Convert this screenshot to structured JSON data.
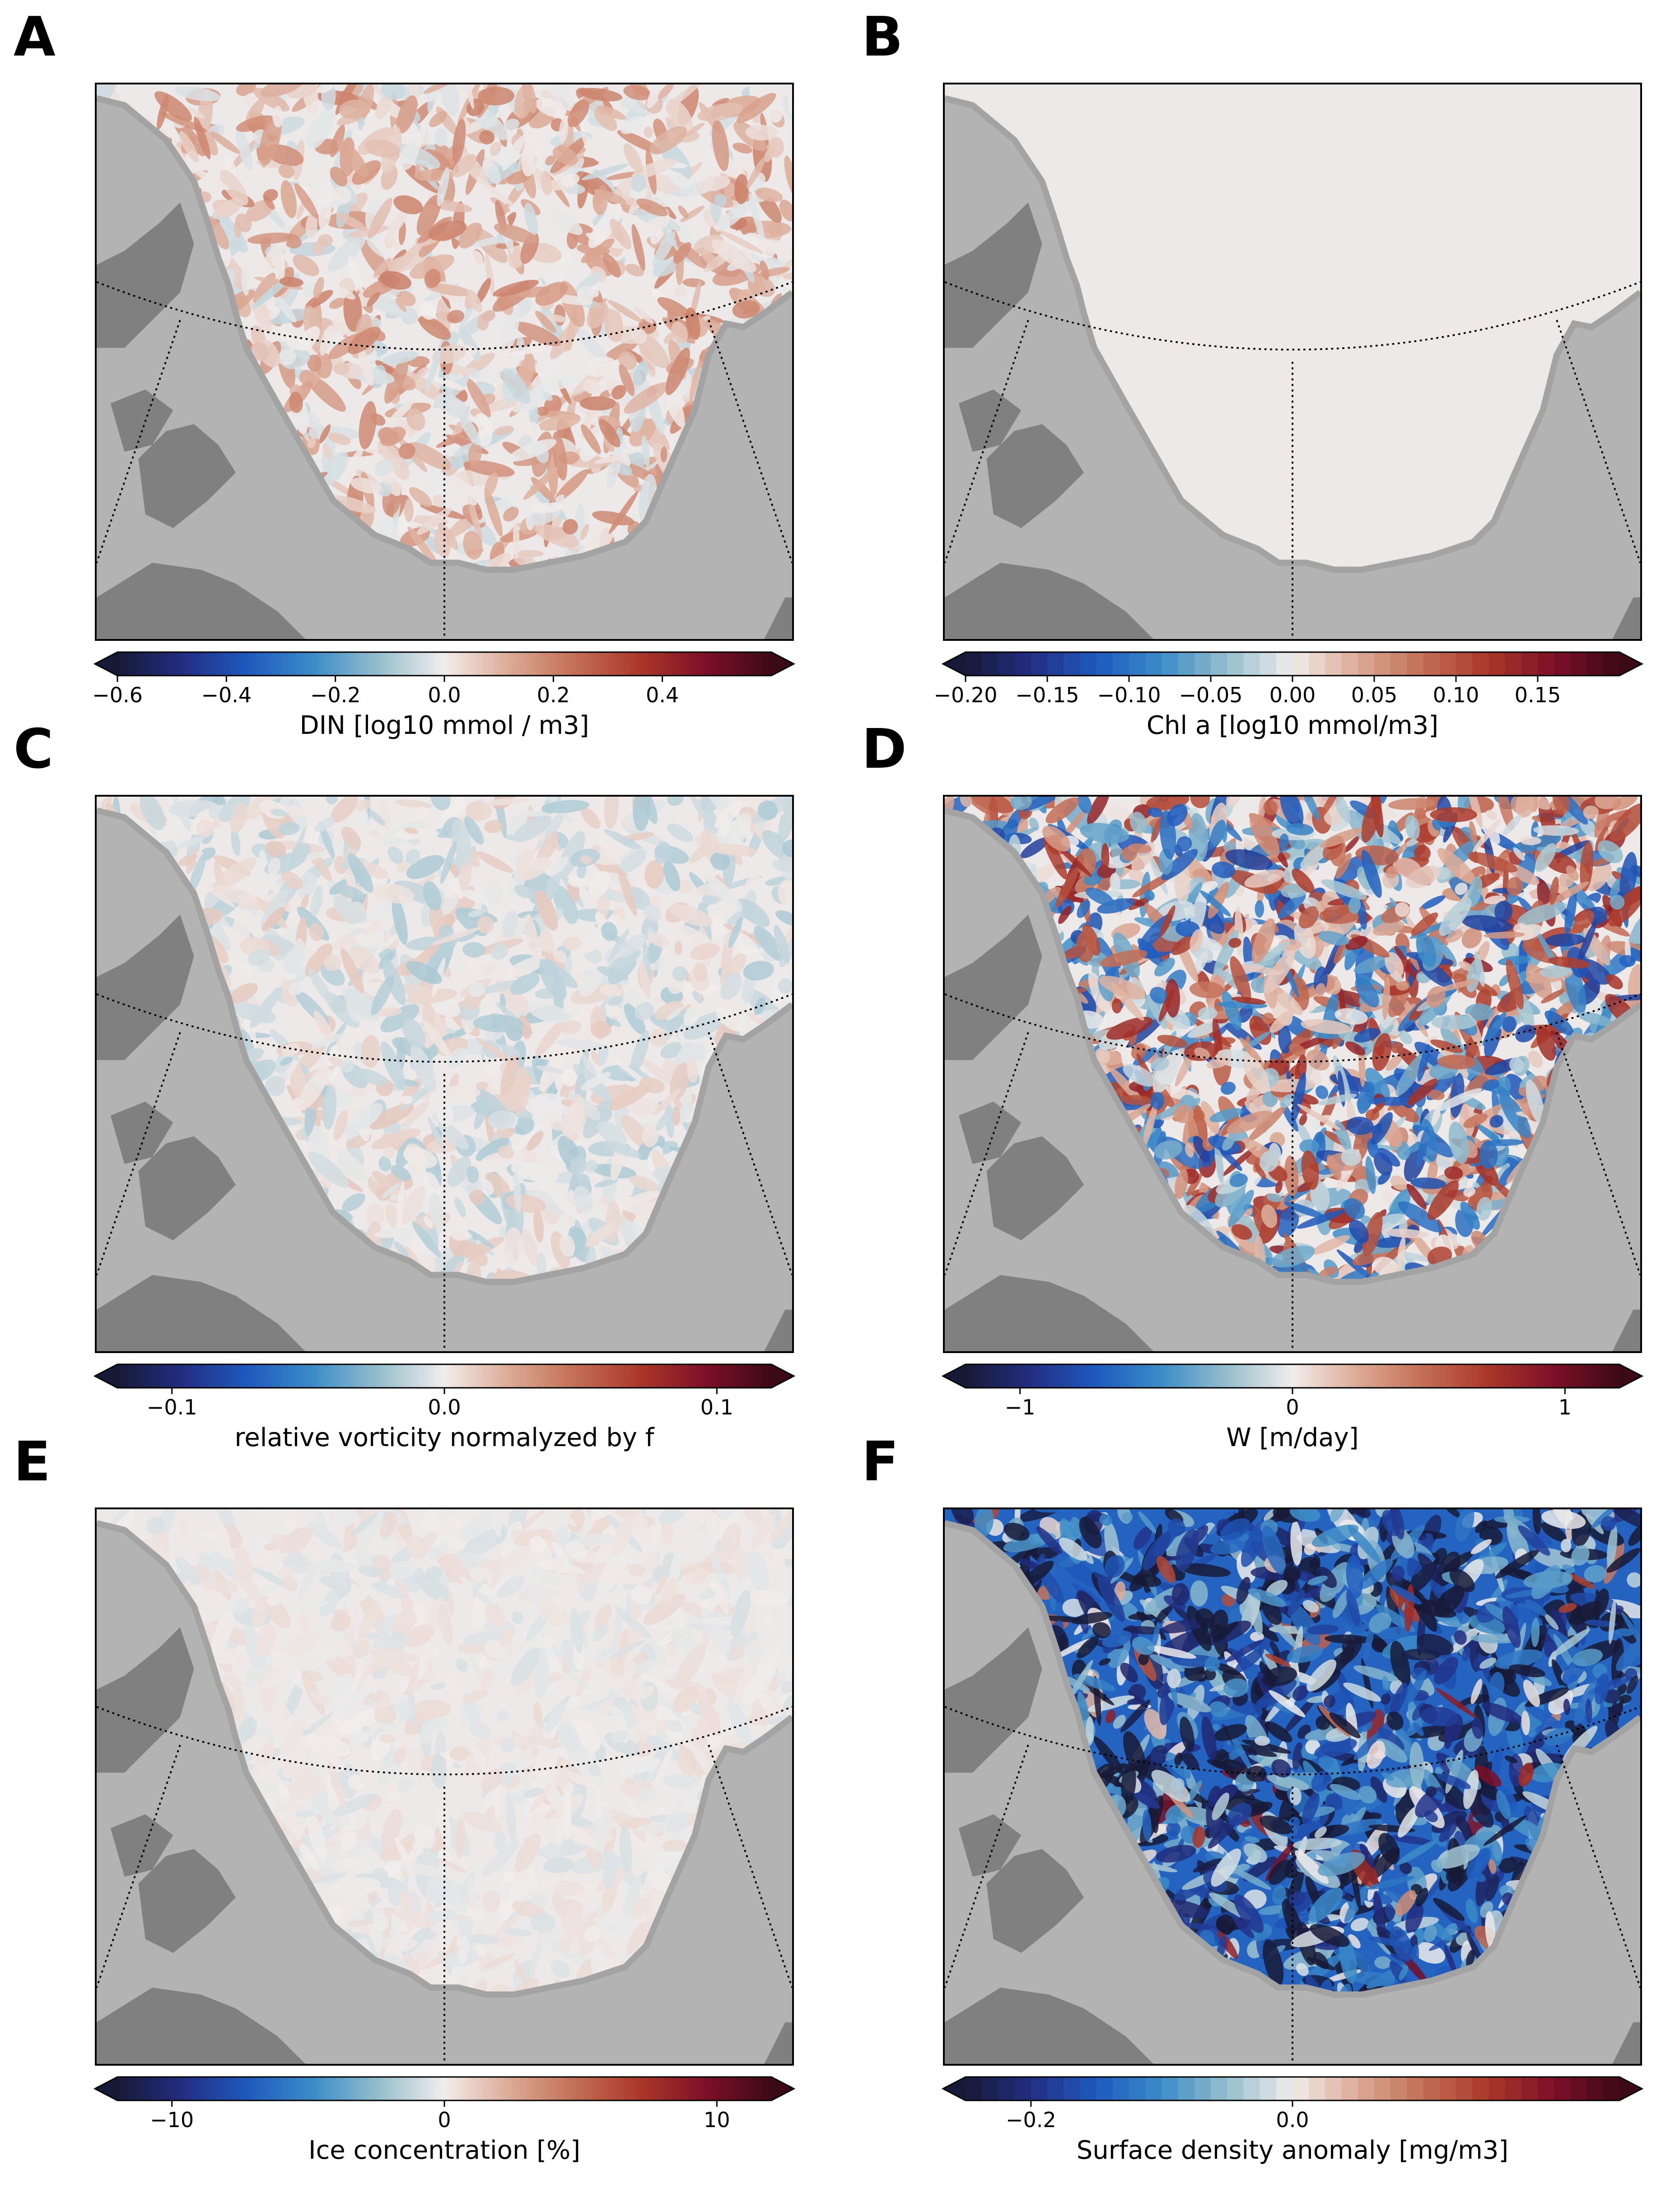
{
  "colors": {
    "land_light": "#b3b3b3",
    "land_dark": "#808080",
    "coast": "#a0a0a0",
    "border": "#000000"
  },
  "chart_data": [
    {
      "type": "heatmap",
      "panel": "A",
      "xlabel": "DIN [log10 mmol / m3]",
      "colormap": "balance-diverging",
      "colorbar_discrete": false,
      "colorbar_range": [
        -0.6,
        0.6
      ],
      "colorbar_extend": "both",
      "ticks": [
        -0.6,
        -0.4,
        -0.2,
        0.0,
        0.2,
        0.4
      ],
      "tick_labels": [
        "−0.6",
        "−0.4",
        "−0.2",
        "0.0",
        "0.2",
        "0.4"
      ],
      "field": {
        "dominant": "weak-positive (light red)",
        "intensity": 0.25
      }
    },
    {
      "type": "heatmap",
      "panel": "B",
      "xlabel": "Chl a [log10 mmol/m3]",
      "colormap": "balance-diverging",
      "colorbar_discrete": true,
      "colorbar_levels": 40,
      "colorbar_range": [
        -0.2,
        0.2
      ],
      "colorbar_extend": "both",
      "ticks": [
        -0.2,
        -0.15,
        -0.1,
        -0.05,
        0.0,
        0.05,
        0.1,
        0.15
      ],
      "tick_labels": [
        "−0.20",
        "−0.15",
        "−0.10",
        "−0.05",
        "0.00",
        "0.05",
        "0.10",
        "0.15"
      ],
      "field": {
        "dominant": "near-zero (uniform light grey)",
        "intensity": 0.0
      }
    },
    {
      "type": "heatmap",
      "panel": "C",
      "xlabel": "relative vorticity normalyzed by f",
      "colormap": "balance-diverging",
      "colorbar_discrete": false,
      "colorbar_range": [
        -0.12,
        0.12
      ],
      "colorbar_extend": "both",
      "ticks": [
        -0.1,
        0.0,
        0.1
      ],
      "tick_labels": [
        "−0.1",
        "0.0",
        "0.1"
      ],
      "field": {
        "dominant": "mixed weak (pale blue/red)",
        "intensity": 0.15
      }
    },
    {
      "type": "heatmap",
      "panel": "D",
      "xlabel": "W [m/day]",
      "colormap": "balance-diverging",
      "colorbar_discrete": false,
      "colorbar_range": [
        -1.2,
        1.2
      ],
      "colorbar_extend": "both",
      "ticks": [
        -1,
        0,
        1
      ],
      "tick_labels": [
        "−1",
        "0",
        "1"
      ],
      "field": {
        "dominant": "mixed strong (red/blue filaments)",
        "intensity": 0.8
      }
    },
    {
      "type": "heatmap",
      "panel": "E",
      "xlabel": "Ice concentration [%]",
      "colormap": "balance-diverging",
      "colorbar_discrete": false,
      "colorbar_range": [
        -12,
        12
      ],
      "colorbar_extend": "both",
      "ticks": [
        -10,
        0,
        10
      ],
      "tick_labels": [
        "−10",
        "0",
        "10"
      ],
      "field": {
        "dominant": "near-zero with weak streaks",
        "intensity": 0.1
      }
    },
    {
      "type": "heatmap",
      "panel": "F",
      "xlabel": "Surface density anomaly [mg/m3]",
      "colormap": "balance-diverging",
      "colorbar_discrete": true,
      "colorbar_levels": 40,
      "colorbar_range": [
        -0.25,
        0.25
      ],
      "colorbar_extend": "both",
      "ticks": [
        -0.2,
        0.0
      ],
      "tick_labels": [
        "−0.2",
        "0.0"
      ],
      "field": {
        "dominant": "negative (blue)",
        "intensity": 0.75
      }
    }
  ]
}
